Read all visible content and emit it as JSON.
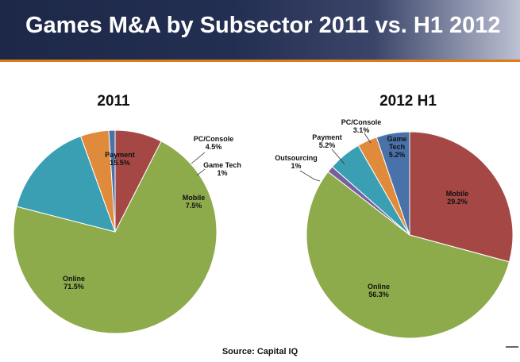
{
  "title": "Games M&A by Subsector 2011 vs. H1 2012",
  "source": "Source: Capital IQ",
  "colors": {
    "Online": "#8eab4b",
    "Payment": "#3a9fb3",
    "PC/Console": "#e08a3c",
    "Game Tech": "#4a72aa",
    "Mobile": "#a54744",
    "Outsourcing": "#7660a0"
  },
  "chart_data": [
    {
      "type": "pie",
      "title": "2011",
      "slices": [
        {
          "label": "Mobile",
          "value": 7.5,
          "display": "7.5%"
        },
        {
          "label": "Online",
          "value": 71.5,
          "display": "71.5%"
        },
        {
          "label": "Payment",
          "value": 15.5,
          "display": "15.5%"
        },
        {
          "label": "PC/Console",
          "value": 4.5,
          "display": "4.5%"
        },
        {
          "label": "Game Tech",
          "value": 1,
          "display": "1%"
        }
      ]
    },
    {
      "type": "pie",
      "title": "2012 H1",
      "slices": [
        {
          "label": "Mobile",
          "value": 29.2,
          "display": "29.2%"
        },
        {
          "label": "Online",
          "value": 56.3,
          "display": "56.3%"
        },
        {
          "label": "Outsourcing",
          "value": 1,
          "display": "1%"
        },
        {
          "label": "Payment",
          "value": 5.2,
          "display": "5.2%"
        },
        {
          "label": "PC/Console",
          "value": 3.1,
          "display": "3.1%"
        },
        {
          "label": "Game Tech",
          "value": 5.2,
          "display": "5.2%"
        }
      ]
    }
  ]
}
